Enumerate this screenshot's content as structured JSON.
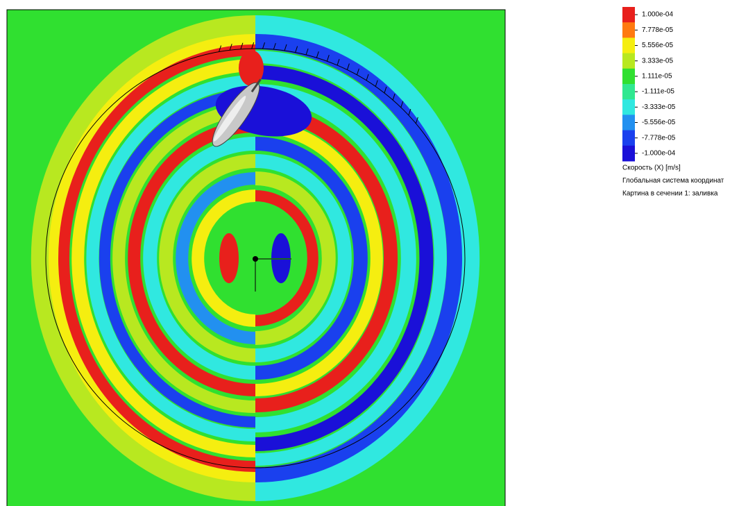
{
  "legend": {
    "labels": [
      "1.000e-04",
      "7.778e-05",
      "5.556e-05",
      "3.333e-05",
      "1.111e-05",
      "-1.111e-05",
      "-3.333e-05",
      "-5.556e-05",
      "-7.778e-05",
      "-1.000e-04"
    ],
    "colors": [
      "#e8201c",
      "#ff7a10",
      "#f5ee10",
      "#b8e820",
      "#30e030",
      "#30e890",
      "#30e8e0",
      "#2290f0",
      "#1a40ee",
      "#1a10d8"
    ]
  },
  "captions": [
    "Скорость (X) [m/s]",
    "Глобальная система координат",
    "Картина в сечении 1: заливка"
  ]
}
